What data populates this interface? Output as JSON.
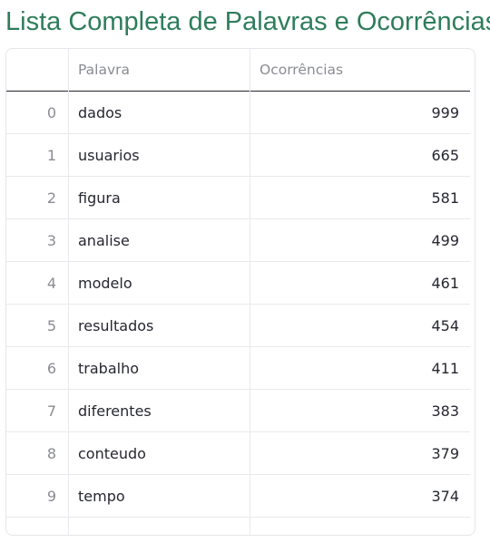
{
  "page": {
    "title": "Lista Completa de Palavras e Ocorrências"
  },
  "table": {
    "columns": [
      "",
      "Palavra",
      "Ocorrências"
    ],
    "rows": [
      {
        "index": "0",
        "word": "dados",
        "count": "999"
      },
      {
        "index": "1",
        "word": "usuarios",
        "count": "665"
      },
      {
        "index": "2",
        "word": "figura",
        "count": "581"
      },
      {
        "index": "3",
        "word": "analise",
        "count": "499"
      },
      {
        "index": "4",
        "word": "modelo",
        "count": "461"
      },
      {
        "index": "5",
        "word": "resultados",
        "count": "454"
      },
      {
        "index": "6",
        "word": "trabalho",
        "count": "411"
      },
      {
        "index": "7",
        "word": "diferentes",
        "count": "383"
      },
      {
        "index": "8",
        "word": "conteudo",
        "count": "379"
      },
      {
        "index": "9",
        "word": "tempo",
        "count": "374"
      },
      {
        "index": "",
        "word": "",
        "count": ""
      }
    ]
  },
  "colors": {
    "title": "#2e7d5b",
    "text": "#262730",
    "muted": "#8a8c93",
    "border": "#e8e9ec"
  }
}
